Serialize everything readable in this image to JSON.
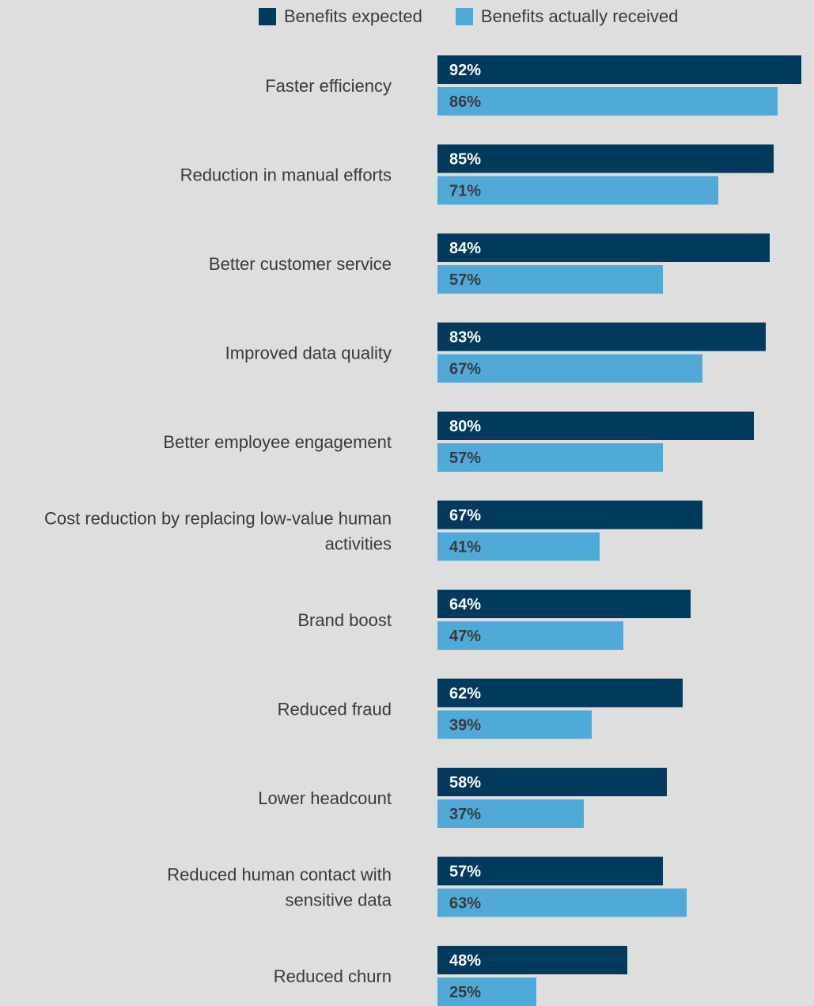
{
  "chart_data": {
    "type": "bar",
    "orientation": "horizontal",
    "categories": [
      [
        "Faster efficiency"
      ],
      [
        "Reduction in manual efforts"
      ],
      [
        "Better customer service"
      ],
      [
        "Improved data quality"
      ],
      [
        "Better employee engagement"
      ],
      [
        "Cost reduction by replacing low-value human",
        "activities"
      ],
      [
        "Brand boost"
      ],
      [
        "Reduced fraud"
      ],
      [
        "Lower headcount"
      ],
      [
        "Reduced human contact with",
        "sensitive data"
      ],
      [
        "Reduced churn"
      ]
    ],
    "series": [
      {
        "name": "Benefits expected",
        "color": "#003a5c",
        "label_color": "#ffffff",
        "values": [
          92,
          85,
          84,
          83,
          80,
          67,
          64,
          62,
          58,
          57,
          48
        ],
        "labels": [
          "92%",
          "85%",
          "84%",
          "83%",
          "80%",
          "67%",
          "64%",
          "62%",
          "58%",
          "57%",
          "48%"
        ]
      },
      {
        "name": "Benefits actually received",
        "color": "#4faad8",
        "label_color": "#3a3a3a",
        "values": [
          86,
          71,
          57,
          67,
          57,
          41,
          47,
          39,
          37,
          63,
          25
        ],
        "labels": [
          "86%",
          "71%",
          "57%",
          "67%",
          "57%",
          "41%",
          "47%",
          "39%",
          "37%",
          "63%",
          "25%"
        ]
      }
    ],
    "xlim": [
      0,
      100
    ],
    "grid": false,
    "legend_position": "top"
  }
}
